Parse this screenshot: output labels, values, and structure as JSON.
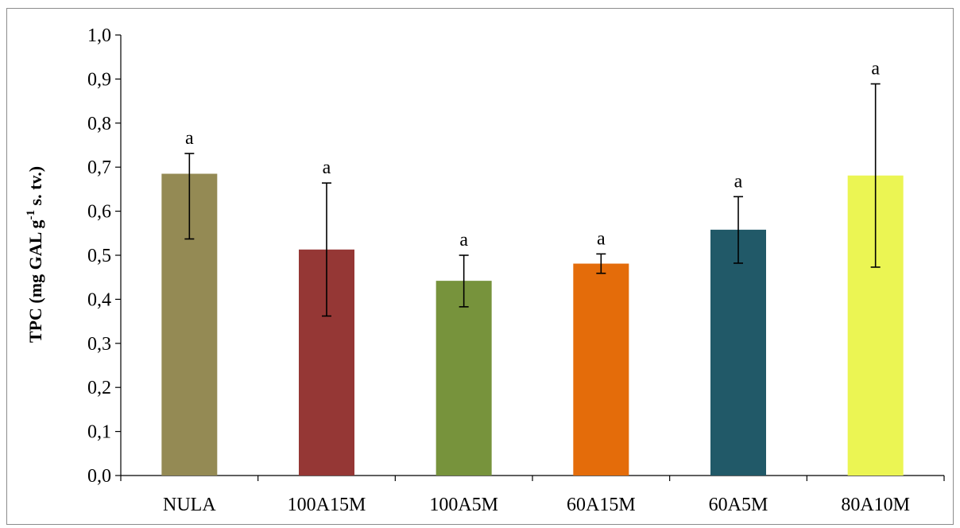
{
  "chart_data": {
    "type": "bar",
    "title": "",
    "xlabel": "",
    "ylabel": {
      "prefix": "TPC (mg GAL g",
      "superscript": "-1",
      "suffix": " s. tv.)"
    },
    "ylim": [
      0,
      1.0
    ],
    "yticks": [
      "0,0",
      "0,1",
      "0,2",
      "0,3",
      "0,4",
      "0,5",
      "0,6",
      "0,7",
      "0,8",
      "0,9",
      "1,0"
    ],
    "ytick_values": [
      0,
      0.1,
      0.2,
      0.3,
      0.4,
      0.5,
      0.6,
      0.7,
      0.8,
      0.9,
      1.0
    ],
    "categories": [
      "NULA",
      "100A15M",
      "100A5M",
      "60A15M",
      "60A5M",
      "80A10M"
    ],
    "values": [
      0.685,
      0.513,
      0.442,
      0.481,
      0.558,
      0.681
    ],
    "error_low": [
      0.537,
      0.362,
      0.383,
      0.459,
      0.482,
      0.473
    ],
    "error_high": [
      0.731,
      0.664,
      0.5,
      0.503,
      0.633,
      0.889
    ],
    "significance": [
      "a",
      "a",
      "a",
      "a",
      "a",
      "a"
    ],
    "colors": [
      "#948a54",
      "#953735",
      "#77933c",
      "#e46c0a",
      "#215968",
      "#ebf553"
    ],
    "grid": false,
    "legend": "none"
  }
}
